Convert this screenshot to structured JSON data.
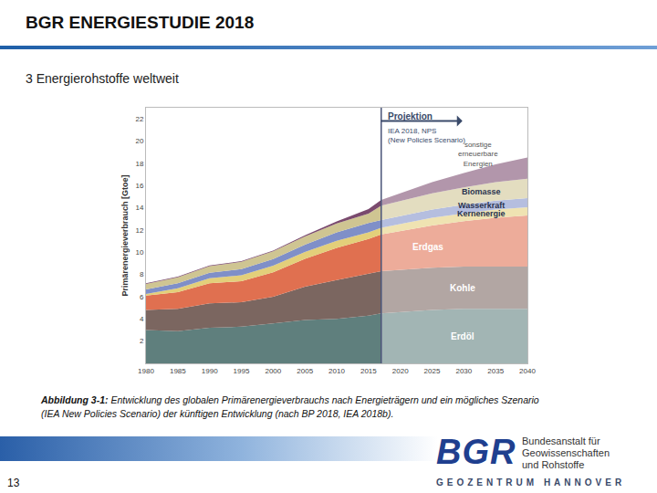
{
  "chart_data": {
    "type": "area",
    "stacked": true,
    "grid": false,
    "y_label": "Primärenergieverbrauch [Gtoe]",
    "x": [
      1980,
      1985,
      1990,
      1995,
      2000,
      2005,
      2010,
      2015,
      2017,
      2020,
      2025,
      2030,
      2035,
      2040
    ],
    "xlim": [
      1980,
      2040
    ],
    "xticks": [
      1980,
      1985,
      1990,
      1995,
      2000,
      2005,
      2010,
      2015,
      2020,
      2025,
      2030,
      2035,
      2040
    ],
    "ylim": [
      0,
      23
    ],
    "yticks": [
      2,
      4,
      6,
      8,
      10,
      12,
      14,
      16,
      18,
      20,
      22
    ],
    "series": [
      {
        "name": "Erdöl",
        "color": "#5f7f7d",
        "values": [
          3.0,
          2.9,
          3.2,
          3.3,
          3.6,
          3.9,
          4.0,
          4.3,
          4.5,
          4.6,
          4.8,
          4.9,
          4.9,
          4.9
        ]
      },
      {
        "name": "Kohle",
        "color": "#7b6660",
        "values": [
          1.8,
          2.0,
          2.2,
          2.2,
          2.4,
          3.0,
          3.5,
          3.8,
          3.8,
          3.8,
          3.8,
          3.8,
          3.8,
          3.8
        ]
      },
      {
        "name": "Erdgas",
        "color": "#e07050",
        "values": [
          1.3,
          1.5,
          1.8,
          1.9,
          2.2,
          2.5,
          2.9,
          3.1,
          3.3,
          3.5,
          3.8,
          4.1,
          4.4,
          4.6
        ]
      },
      {
        "name": "Kernenergie",
        "color": "#e3cf7a",
        "values": [
          0.15,
          0.35,
          0.45,
          0.53,
          0.58,
          0.62,
          0.63,
          0.58,
          0.6,
          0.65,
          0.7,
          0.7,
          0.75,
          0.75
        ]
      },
      {
        "name": "Wasserkraft",
        "color": "#7f8fc8",
        "values": [
          0.4,
          0.45,
          0.5,
          0.55,
          0.6,
          0.65,
          0.75,
          0.85,
          0.7,
          0.72,
          0.75,
          0.78,
          0.8,
          0.82
        ]
      },
      {
        "name": "Biomasse",
        "color": "#cfc592",
        "values": [
          0.5,
          0.55,
          0.6,
          0.65,
          0.7,
          0.75,
          0.8,
          0.85,
          1.3,
          1.35,
          1.45,
          1.55,
          1.65,
          1.75
        ]
      },
      {
        "name": "sonstige erneuerbare Energien",
        "color": "#7a4a6e",
        "values": [
          0.05,
          0.05,
          0.05,
          0.06,
          0.07,
          0.1,
          0.2,
          0.4,
          0.5,
          0.7,
          1.0,
          1.3,
          1.6,
          1.9
        ]
      }
    ],
    "projection": {
      "x": 2017,
      "label": "Projektion",
      "source": [
        "IEA 2018, NPS",
        "(New Policies Scenario)"
      ]
    }
  },
  "slide": {
    "header": "BGR ENERGIESTUDIE 2018",
    "section": "3 Energierohstoffe weltweit",
    "caption": {
      "label": "Abbildung 3-1:",
      "lines": [
        "Entwicklung des globalen Primärenergieverbrauchs nach Energieträgern und ein mögliches Szenario",
        "(IEA New Policies Scenario) der künftigen Entwicklung (nach BP 2018, IEA 2018b)."
      ]
    },
    "page": 13,
    "logo": {
      "acronym": "BGR",
      "name": [
        "Bundesanstalt für",
        "Geowissenschaften",
        "und Rohstoffe"
      ],
      "footer": "GEOZENTRUM HANNOVER"
    }
  }
}
